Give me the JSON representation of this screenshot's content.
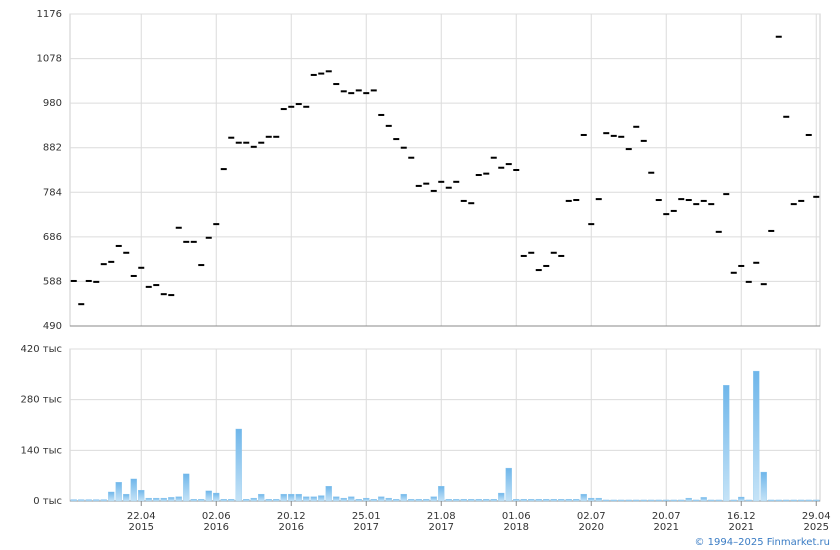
{
  "chart_data": [
    {
      "type": "price",
      "categories": [
        null,
        null,
        null,
        null,
        null,
        null,
        null,
        null,
        null,
        [
          "22.04",
          "2015"
        ],
        null,
        null,
        null,
        null,
        null,
        null,
        null,
        null,
        null,
        [
          "02.06",
          "2016"
        ],
        null,
        null,
        null,
        null,
        null,
        null,
        null,
        null,
        null,
        [
          "20.12",
          "2016"
        ],
        null,
        null,
        null,
        null,
        null,
        null,
        null,
        null,
        null,
        [
          "25.01",
          "2017"
        ],
        null,
        null,
        null,
        null,
        null,
        null,
        null,
        null,
        null,
        [
          "21.08",
          "2017"
        ],
        null,
        null,
        null,
        null,
        null,
        null,
        null,
        null,
        null,
        [
          "01.06",
          "2018"
        ],
        null,
        null,
        null,
        null,
        null,
        null,
        null,
        null,
        null,
        [
          "02.07",
          "2020"
        ],
        null,
        null,
        null,
        null,
        null,
        null,
        null,
        null,
        null,
        [
          "20.07",
          "2021"
        ],
        null,
        null,
        null,
        null,
        null,
        null,
        null,
        null,
        null,
        [
          "16.12",
          "2021"
        ],
        null,
        null,
        null,
        null,
        null,
        null,
        null,
        null,
        null,
        [
          "29.04",
          "2025"
        ]
      ],
      "values": [
        589,
        538,
        589,
        587,
        626,
        631,
        666,
        651,
        600,
        618,
        576,
        580,
        560,
        558,
        706,
        675,
        675,
        624,
        684,
        714,
        835,
        904,
        893,
        893,
        884,
        893,
        906,
        906,
        967,
        972,
        978,
        972,
        1042,
        1045,
        1050,
        1022,
        1006,
        1002,
        1008,
        1002,
        1008,
        954,
        930,
        901,
        882,
        860,
        798,
        803,
        787,
        807,
        794,
        807,
        765,
        760,
        822,
        825,
        860,
        838,
        846,
        833,
        644,
        651,
        613,
        622,
        651,
        644,
        765,
        767,
        910,
        714,
        769,
        914,
        908,
        906,
        879,
        928,
        897,
        827,
        767,
        736,
        743,
        769,
        767,
        758,
        765,
        758,
        697,
        780,
        607,
        622,
        587,
        629,
        582,
        699,
        1126,
        950,
        758,
        765,
        910,
        774
      ],
      "color": "#000000",
      "ylim": [
        490,
        1176
      ],
      "yticks": [
        490,
        588,
        686,
        784,
        882,
        980,
        1078,
        1176
      ],
      "grid": true
    },
    {
      "type": "volume",
      "values": [
        4,
        4,
        4,
        4,
        4,
        25,
        52,
        19,
        61,
        30,
        8,
        8,
        8,
        10,
        12,
        75,
        5,
        5,
        28,
        22,
        5,
        5,
        199,
        5,
        8,
        19,
        5,
        5,
        19,
        19,
        19,
        12,
        12,
        15,
        41,
        12,
        8,
        12,
        5,
        8,
        5,
        12,
        8,
        5,
        19,
        5,
        5,
        5,
        12,
        41,
        5,
        5,
        5,
        5,
        5,
        5,
        5,
        22,
        91,
        5,
        5,
        5,
        5,
        5,
        5,
        5,
        5,
        5,
        19,
        8,
        8,
        3,
        3,
        3,
        3,
        3,
        3,
        3,
        3,
        3,
        3,
        3,
        8,
        3,
        10,
        3,
        3,
        320,
        3,
        11,
        3,
        359,
        80,
        3,
        3,
        3,
        3,
        3,
        3,
        3
      ],
      "color": "#8ec8ef",
      "ylim": [
        0,
        420
      ],
      "yticks": [
        {
          "value": 0,
          "label": "0 тыс"
        },
        {
          "value": 140,
          "label": "140 тыс"
        },
        {
          "value": 280,
          "label": "280 тыс"
        },
        {
          "value": 420,
          "label": "420 тыс"
        }
      ],
      "grid": true
    }
  ],
  "footer": "© 1994–2025 Finmarket.ru"
}
